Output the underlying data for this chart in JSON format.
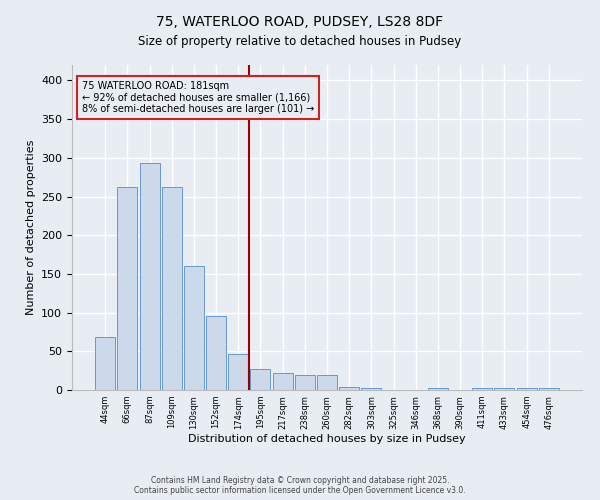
{
  "title_line1": "75, WATERLOO ROAD, PUDSEY, LS28 8DF",
  "title_line2": "Size of property relative to detached houses in Pudsey",
  "xlabel": "Distribution of detached houses by size in Pudsey",
  "ylabel": "Number of detached properties",
  "bar_color": "#ccd9ea",
  "bar_edge_color": "#6699cc",
  "background_color": "#e8edf4",
  "grid_color": "#ffffff",
  "bins": [
    "44sqm",
    "66sqm",
    "87sqm",
    "109sqm",
    "130sqm",
    "152sqm",
    "174sqm",
    "195sqm",
    "217sqm",
    "238sqm",
    "260sqm",
    "282sqm",
    "303sqm",
    "325sqm",
    "346sqm",
    "368sqm",
    "390sqm",
    "411sqm",
    "433sqm",
    "454sqm",
    "476sqm"
  ],
  "values": [
    68,
    262,
    293,
    262,
    160,
    95,
    46,
    27,
    22,
    20,
    20,
    4,
    2,
    0,
    0,
    2,
    0,
    2,
    2,
    2,
    2
  ],
  "annotation_line1": "75 WATERLOO ROAD: 181sqm",
  "annotation_line2": "← 92% of detached houses are smaller (1,166)",
  "annotation_line3": "8% of semi-detached houses are larger (101) →",
  "footer_line1": "Contains HM Land Registry data © Crown copyright and database right 2025.",
  "footer_line2": "Contains public sector information licensed under the Open Government Licence v3.0.",
  "ylim": [
    0,
    420
  ],
  "yticks": [
    0,
    50,
    100,
    150,
    200,
    250,
    300,
    350,
    400
  ]
}
